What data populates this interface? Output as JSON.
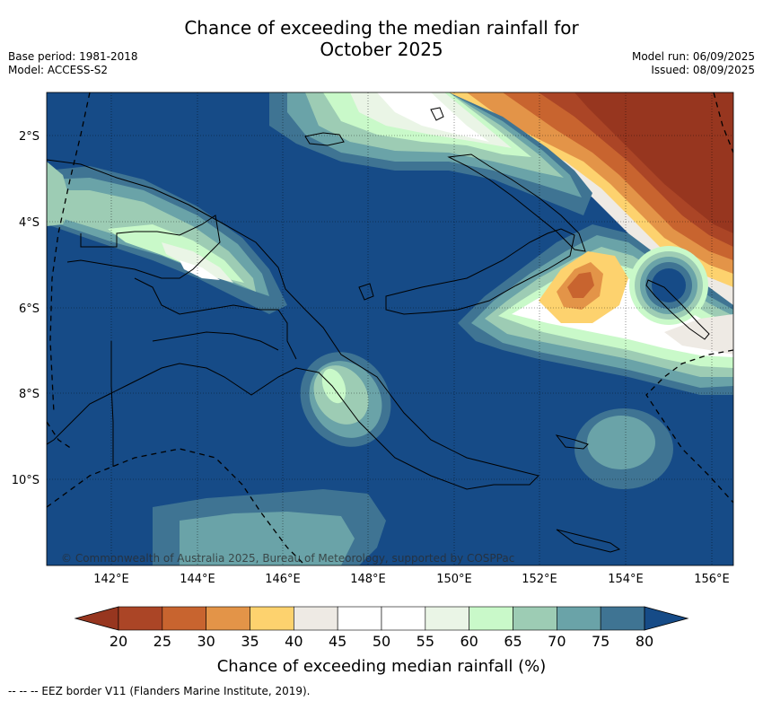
{
  "header": {
    "title_line1": "Chance of exceeding the median rainfall for",
    "title_line2": "October 2025",
    "base_period": "Base period: 1981-2018",
    "model": "Model: ACCESS-S2",
    "model_run": "Model run: 06/09/2025",
    "issued": "Issued: 08/09/2025"
  },
  "map": {
    "lon_ticks": [
      "142°E",
      "144°E",
      "146°E",
      "148°E",
      "150°E",
      "152°E",
      "154°E",
      "156°E"
    ],
    "lat_ticks": [
      "2°S",
      "4°S",
      "6°S",
      "8°S",
      "10°S"
    ],
    "copyright": "© Commonwealth of Australia 2025, Bureau of Meteorology, supported by COSPPac",
    "background_color": "#164b87"
  },
  "colorbar": {
    "ticks": [
      "20",
      "25",
      "30",
      "35",
      "40",
      "45",
      "50",
      "55",
      "60",
      "65",
      "70",
      "75",
      "80"
    ],
    "colors": [
      "#ab4526",
      "#c8642f",
      "#e39448",
      "#fdd26e",
      "#eeeae4",
      "#ffffff",
      "#ffffff",
      "#eaf5e6",
      "#c9f9c9",
      "#9dccb4",
      "#6aa3a8",
      "#3f7493"
    ],
    "low_color": "#97361f",
    "high_color": "#164b87",
    "label": "Chance of exceeding median rainfall (%)"
  },
  "footer": {
    "legend_text": "-- -- -- EEZ border V11 (Flanders Marine Institute, 2019)."
  }
}
